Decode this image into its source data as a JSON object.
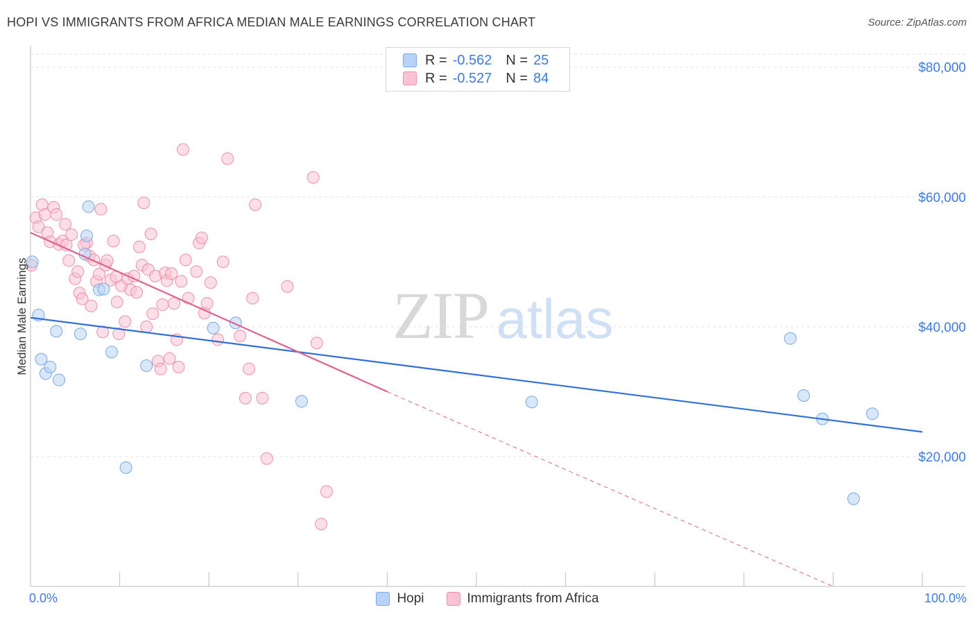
{
  "title": "HOPI VS IMMIGRANTS FROM AFRICA MEDIAN MALE EARNINGS CORRELATION CHART",
  "source": "Source: ZipAtlas.com",
  "watermark": {
    "zip": "ZIP",
    "atlas": "atlas"
  },
  "legend": {
    "r_label": "R =",
    "n_label": "N =",
    "items": [
      {
        "name": "Hopi",
        "r": "-0.562",
        "n": "25"
      },
      {
        "name": "Immigrants from Africa",
        "r": "-0.527",
        "n": "84"
      }
    ]
  },
  "colors": {
    "hopi_fill": "#b8d3f5",
    "hopi_stroke": "#7aa8e0",
    "hopi_line": "#2f6fd6",
    "africa_fill": "#f9c3d4",
    "africa_stroke": "#ec8fad",
    "africa_line": "#e0608e",
    "axis_text": "#3d7be0",
    "grid": "#e3e3e3"
  },
  "chart_data": {
    "type": "scatter",
    "title": "HOPI VS IMMIGRANTS FROM AFRICA MEDIAN MALE EARNINGS CORRELATION CHART",
    "xlabel": "",
    "ylabel": "Median Male Earnings",
    "xlim": [
      0,
      100
    ],
    "ylim": [
      0,
      82000
    ],
    "x_tick_labels": [
      "0.0%",
      "100.0%"
    ],
    "y_ticks": [
      20000,
      40000,
      60000,
      80000
    ],
    "y_tick_labels": [
      "$20,000",
      "$40,000",
      "$60,000",
      "$80,000"
    ],
    "grid": true,
    "legend_placement": "top-center",
    "series": [
      {
        "name": "Hopi",
        "points": [
          [
            0.2,
            50000
          ],
          [
            0.9,
            41800
          ],
          [
            1.2,
            35000
          ],
          [
            1.7,
            32800
          ],
          [
            2.2,
            33800
          ],
          [
            2.9,
            39300
          ],
          [
            3.2,
            31800
          ],
          [
            5.6,
            38900
          ],
          [
            6.5,
            58500
          ],
          [
            6.3,
            54000
          ],
          [
            6.1,
            51200
          ],
          [
            7.7,
            45700
          ],
          [
            8.2,
            45800
          ],
          [
            9.1,
            36100
          ],
          [
            10.7,
            18300
          ],
          [
            13.0,
            34000
          ],
          [
            20.5,
            39800
          ],
          [
            23.0,
            40600
          ],
          [
            30.4,
            28500
          ],
          [
            56.2,
            28400
          ],
          [
            85.2,
            38200
          ],
          [
            86.7,
            29400
          ],
          [
            88.8,
            25800
          ],
          [
            92.3,
            13500
          ],
          [
            94.4,
            26600
          ]
        ],
        "trend": {
          "x": [
            0,
            100
          ],
          "y": [
            41400,
            23800
          ]
        }
      },
      {
        "name": "Immigrants from Africa",
        "points": [
          [
            0.1,
            49500
          ],
          [
            0.6,
            56800
          ],
          [
            0.9,
            55400
          ],
          [
            1.3,
            58800
          ],
          [
            1.6,
            57300
          ],
          [
            1.9,
            54500
          ],
          [
            2.2,
            53100
          ],
          [
            2.6,
            58400
          ],
          [
            2.9,
            57300
          ],
          [
            3.2,
            52700
          ],
          [
            3.6,
            53200
          ],
          [
            4.0,
            52600
          ],
          [
            4.3,
            50200
          ],
          [
            4.6,
            54200
          ],
          [
            5.0,
            47400
          ],
          [
            5.3,
            48500
          ],
          [
            5.5,
            45200
          ],
          [
            5.8,
            44300
          ],
          [
            6.3,
            52900
          ],
          [
            6.6,
            50900
          ],
          [
            6.8,
            43200
          ],
          [
            7.1,
            50300
          ],
          [
            7.4,
            47000
          ],
          [
            7.7,
            48100
          ],
          [
            7.9,
            58100
          ],
          [
            8.1,
            39200
          ],
          [
            8.4,
            49500
          ],
          [
            8.6,
            50200
          ],
          [
            9.0,
            47200
          ],
          [
            9.3,
            53200
          ],
          [
            9.7,
            43800
          ],
          [
            9.9,
            38900
          ],
          [
            10.2,
            46300
          ],
          [
            10.6,
            40800
          ],
          [
            10.9,
            47400
          ],
          [
            11.2,
            45700
          ],
          [
            11.6,
            47800
          ],
          [
            11.9,
            45300
          ],
          [
            12.2,
            52300
          ],
          [
            12.5,
            49500
          ],
          [
            12.7,
            59100
          ],
          [
            13.0,
            40000
          ],
          [
            13.2,
            48800
          ],
          [
            13.5,
            54300
          ],
          [
            13.7,
            42000
          ],
          [
            14.0,
            47800
          ],
          [
            14.3,
            34700
          ],
          [
            14.6,
            33500
          ],
          [
            14.8,
            43400
          ],
          [
            15.1,
            48300
          ],
          [
            15.3,
            47100
          ],
          [
            15.6,
            35100
          ],
          [
            15.8,
            48200
          ],
          [
            16.1,
            43600
          ],
          [
            16.4,
            38000
          ],
          [
            16.6,
            33800
          ],
          [
            16.9,
            47000
          ],
          [
            17.1,
            67300
          ],
          [
            17.4,
            50300
          ],
          [
            17.7,
            44400
          ],
          [
            18.9,
            52900
          ],
          [
            19.2,
            53700
          ],
          [
            19.5,
            42100
          ],
          [
            19.8,
            43600
          ],
          [
            20.2,
            46800
          ],
          [
            21.0,
            38000
          ],
          [
            21.6,
            50000
          ],
          [
            22.1,
            65900
          ],
          [
            23.5,
            38600
          ],
          [
            24.1,
            29000
          ],
          [
            24.5,
            33500
          ],
          [
            24.9,
            44400
          ],
          [
            25.2,
            58800
          ],
          [
            26.0,
            29000
          ],
          [
            26.5,
            19700
          ],
          [
            28.8,
            46200
          ],
          [
            31.7,
            63000
          ],
          [
            32.1,
            37500
          ],
          [
            33.2,
            14600
          ],
          [
            32.6,
            9600
          ],
          [
            3.9,
            55800
          ],
          [
            6.0,
            52600
          ],
          [
            9.6,
            47700
          ],
          [
            18.6,
            48500
          ]
        ],
        "trend": {
          "x": [
            0,
            40
          ],
          "y": [
            54500,
            30000
          ]
        },
        "trend_extension": {
          "x": [
            40,
            90
          ],
          "y": [
            30000,
            0
          ]
        }
      }
    ]
  },
  "axis_labels": {
    "x_min": "0.0%",
    "x_max": "100.0%"
  }
}
